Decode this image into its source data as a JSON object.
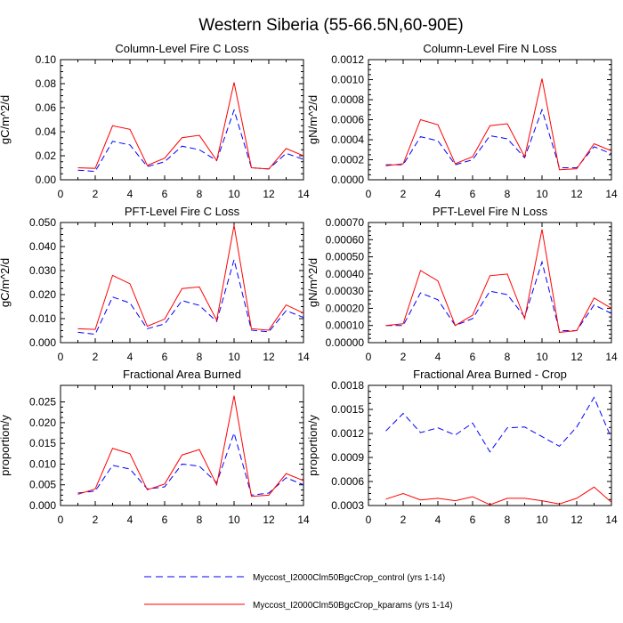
{
  "figure": {
    "title": "Western Siberia (55-66.5N,60-90E)"
  },
  "legend": {
    "entries": [
      {
        "label": "Myccost_I2000Clm50BgcCrop_control (yrs 1-14)",
        "color": "#0000ff",
        "dash": "dashed"
      },
      {
        "label": "Myccost_I2000Clm50BgcCrop_kparams (yrs 1-14)",
        "color": "#ff0000",
        "dash": "solid"
      }
    ]
  },
  "chart_data": [
    {
      "type": "line",
      "title": "Column-Level Fire C Loss",
      "xlabel": "",
      "ylabel": "gC/m^2/d",
      "xlim": [
        0,
        14
      ],
      "ylim": [
        0,
        0.1
      ],
      "xticks": [
        0,
        2,
        4,
        6,
        8,
        10,
        12,
        14
      ],
      "xtick_labels": [
        "0",
        "2",
        "4",
        "6",
        "8",
        "10",
        "12",
        "14"
      ],
      "yticks": [
        0,
        0.02,
        0.04,
        0.06,
        0.08,
        0.1
      ],
      "ytick_labels": [
        "0.00",
        "0.02",
        "0.04",
        "0.06",
        "0.08",
        "0.10"
      ],
      "x": [
        1,
        2,
        3,
        4,
        5,
        6,
        7,
        8,
        9,
        10,
        11,
        12,
        13,
        14
      ],
      "series": [
        {
          "name": "Myccost_I2000Clm50BgcCrop_control (yrs 1-14)",
          "color": "#0000ff",
          "dash": "dashed",
          "values": [
            0.008,
            0.007,
            0.032,
            0.029,
            0.011,
            0.015,
            0.028,
            0.025,
            0.016,
            0.058,
            0.01,
            0.009,
            0.022,
            0.017
          ]
        },
        {
          "name": "Myccost_I2000Clm50BgcCrop_kparams (yrs 1-14)",
          "color": "#ff0000",
          "dash": "solid",
          "values": [
            0.01,
            0.0095,
            0.045,
            0.042,
            0.012,
            0.018,
            0.035,
            0.037,
            0.016,
            0.081,
            0.01,
            0.009,
            0.026,
            0.02
          ]
        }
      ]
    },
    {
      "type": "line",
      "title": "Column-Level Fire N Loss",
      "xlabel": "",
      "ylabel": "gN/m^2/d",
      "xlim": [
        0,
        14
      ],
      "ylim": [
        0,
        0.0012
      ],
      "xticks": [
        0,
        2,
        4,
        6,
        8,
        10,
        12,
        14
      ],
      "xtick_labels": [
        "0",
        "2",
        "4",
        "6",
        "8",
        "10",
        "12",
        "14"
      ],
      "yticks": [
        0,
        0.0002,
        0.0004,
        0.0006,
        0.0008,
        0.001,
        0.0012
      ],
      "ytick_labels": [
        "0.0000",
        "0.0002",
        "0.0004",
        "0.0006",
        "0.0008",
        "0.0010",
        "0.0012"
      ],
      "x": [
        1,
        2,
        3,
        4,
        5,
        6,
        7,
        8,
        9,
        10,
        11,
        12,
        13,
        14
      ],
      "series": [
        {
          "name": "Myccost_I2000Clm50BgcCrop_control (yrs 1-14)",
          "color": "#0000ff",
          "dash": "dashed",
          "values": [
            0.00015,
            0.00015,
            0.00043,
            0.00039,
            0.00015,
            0.0002,
            0.00044,
            0.00041,
            0.00022,
            0.0007,
            0.00012,
            0.00012,
            0.00033,
            0.00026
          ]
        },
        {
          "name": "Myccost_I2000Clm50BgcCrop_kparams (yrs 1-14)",
          "color": "#ff0000",
          "dash": "solid",
          "values": [
            0.00014,
            0.00016,
            0.0006,
            0.00055,
            0.00016,
            0.00023,
            0.00054,
            0.00056,
            0.00023,
            0.00101,
            0.0001,
            0.00011,
            0.00036,
            0.00029
          ]
        }
      ]
    },
    {
      "type": "line",
      "title": "PFT-Level Fire C Loss",
      "xlabel": "",
      "ylabel": "gC/m^2/d",
      "xlim": [
        0,
        14
      ],
      "ylim": [
        0,
        0.05
      ],
      "xticks": [
        0,
        2,
        4,
        6,
        8,
        10,
        12,
        14
      ],
      "xtick_labels": [
        "0",
        "2",
        "4",
        "6",
        "8",
        "10",
        "12",
        "14"
      ],
      "yticks": [
        0,
        0.01,
        0.02,
        0.03,
        0.04,
        0.05
      ],
      "ytick_labels": [
        "0.000",
        "0.010",
        "0.020",
        "0.030",
        "0.040",
        "0.050"
      ],
      "x": [
        1,
        2,
        3,
        4,
        5,
        6,
        7,
        8,
        9,
        10,
        11,
        12,
        13,
        14
      ],
      "series": [
        {
          "name": "Myccost_I2000Clm50BgcCrop_control (yrs 1-14)",
          "color": "#0000ff",
          "dash": "dashed",
          "values": [
            0.0043,
            0.0035,
            0.019,
            0.0165,
            0.0058,
            0.0078,
            0.0175,
            0.0155,
            0.0088,
            0.0345,
            0.0052,
            0.0045,
            0.0133,
            0.0105
          ]
        },
        {
          "name": "Myccost_I2000Clm50BgcCrop_kparams (yrs 1-14)",
          "color": "#ff0000",
          "dash": "solid",
          "values": [
            0.0058,
            0.0055,
            0.028,
            0.0245,
            0.0068,
            0.0098,
            0.0225,
            0.0232,
            0.0093,
            0.0488,
            0.0058,
            0.0052,
            0.0157,
            0.0123
          ]
        }
      ]
    },
    {
      "type": "line",
      "title": "PFT-Level Fire N Loss",
      "xlabel": "",
      "ylabel": "gN/m^2/d",
      "xlim": [
        0,
        14
      ],
      "ylim": [
        0,
        0.0007
      ],
      "xticks": [
        0,
        2,
        4,
        6,
        8,
        10,
        12,
        14
      ],
      "xtick_labels": [
        "0",
        "2",
        "4",
        "6",
        "8",
        "10",
        "12",
        "14"
      ],
      "yticks": [
        0,
        0.0001,
        0.0002,
        0.0003,
        0.0004,
        0.0005,
        0.0006,
        0.0007
      ],
      "ytick_labels": [
        "0.00000",
        "0.00010",
        "0.00020",
        "0.00030",
        "0.00040",
        "0.00050",
        "0.00060",
        "0.00070"
      ],
      "x": [
        1,
        2,
        3,
        4,
        5,
        6,
        7,
        8,
        9,
        10,
        11,
        12,
        13,
        14
      ],
      "series": [
        {
          "name": "Myccost_I2000Clm50BgcCrop_control (yrs 1-14)",
          "color": "#0000ff",
          "dash": "dashed",
          "values": [
            0.0001,
            0.0001,
            0.00029,
            0.00025,
            0.0001,
            0.00014,
            0.0003,
            0.00028,
            0.00015,
            0.00047,
            7e-05,
            7e-05,
            0.00022,
            0.00017
          ]
        },
        {
          "name": "Myccost_I2000Clm50BgcCrop_kparams (yrs 1-14)",
          "color": "#ff0000",
          "dash": "solid",
          "values": [
            0.0001,
            0.00011,
            0.00042,
            0.00036,
            0.0001,
            0.00016,
            0.00039,
            0.0004,
            0.00014,
            0.00066,
            6e-05,
            7e-05,
            0.00026,
            0.0002
          ]
        }
      ]
    },
    {
      "type": "line",
      "title": "Fractional Area Burned",
      "xlabel": "",
      "ylabel": "proportion/y",
      "xlim": [
        0,
        14
      ],
      "ylim": [
        0,
        0.029
      ],
      "xticks": [
        0,
        2,
        4,
        6,
        8,
        10,
        12,
        14
      ],
      "xtick_labels": [
        "0",
        "2",
        "4",
        "6",
        "8",
        "10",
        "12",
        "14"
      ],
      "yticks": [
        0,
        0.005,
        0.01,
        0.015,
        0.02,
        0.025
      ],
      "ytick_labels": [
        "0.000",
        "0.005",
        "0.010",
        "0.015",
        "0.020",
        "0.025"
      ],
      "x": [
        1,
        2,
        3,
        4,
        5,
        6,
        7,
        8,
        9,
        10,
        11,
        12,
        13,
        14
      ],
      "series": [
        {
          "name": "Myccost_I2000Clm50BgcCrop_control (yrs 1-14)",
          "color": "#0000ff",
          "dash": "dashed",
          "values": [
            0.003,
            0.0035,
            0.0097,
            0.0088,
            0.004,
            0.0045,
            0.01,
            0.0095,
            0.0055,
            0.0175,
            0.0025,
            0.003,
            0.0067,
            0.005
          ]
        },
        {
          "name": "Myccost_I2000Clm50BgcCrop_kparams (yrs 1-14)",
          "color": "#ff0000",
          "dash": "solid",
          "values": [
            0.0027,
            0.004,
            0.0138,
            0.0125,
            0.0038,
            0.0052,
            0.0122,
            0.0135,
            0.005,
            0.0265,
            0.0022,
            0.0025,
            0.0077,
            0.006
          ]
        }
      ]
    },
    {
      "type": "line",
      "title": "Fractional Area Burned - Crop",
      "xlabel": "",
      "ylabel": "proportion/y",
      "xlim": [
        0,
        14
      ],
      "ylim": [
        0.0003,
        0.0018
      ],
      "xticks": [
        0,
        2,
        4,
        6,
        8,
        10,
        12,
        14
      ],
      "xtick_labels": [
        "0",
        "2",
        "4",
        "6",
        "8",
        "10",
        "12",
        "14"
      ],
      "yticks": [
        0.0003,
        0.0006,
        0.0009,
        0.0012,
        0.0015,
        0.0018
      ],
      "ytick_labels": [
        "0.0003",
        "0.0006",
        "0.0009",
        "0.0012",
        "0.0015",
        "0.0018"
      ],
      "x": [
        1,
        2,
        3,
        4,
        5,
        6,
        7,
        8,
        9,
        10,
        11,
        12,
        13,
        14
      ],
      "series": [
        {
          "name": "Myccost_I2000Clm50BgcCrop_control (yrs 1-14)",
          "color": "#0000ff",
          "dash": "dashed",
          "values": [
            0.00123,
            0.00145,
            0.00121,
            0.00127,
            0.00118,
            0.00133,
            0.00097,
            0.00127,
            0.00128,
            0.00116,
            0.00104,
            0.00128,
            0.00165,
            0.00114
          ]
        },
        {
          "name": "Myccost_I2000Clm50BgcCrop_kparams (yrs 1-14)",
          "color": "#ff0000",
          "dash": "solid",
          "values": [
            0.00038,
            0.00045,
            0.00037,
            0.00039,
            0.00036,
            0.00041,
            0.00031,
            0.00039,
            0.00039,
            0.00036,
            0.00032,
            0.00039,
            0.00053,
            0.00034
          ]
        }
      ]
    }
  ]
}
